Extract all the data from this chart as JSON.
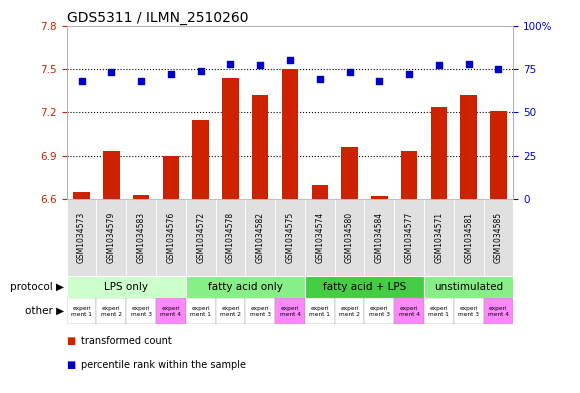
{
  "title": "GDS5311 / ILMN_2510260",
  "samples": [
    "GSM1034573",
    "GSM1034579",
    "GSM1034583",
    "GSM1034576",
    "GSM1034572",
    "GSM1034578",
    "GSM1034582",
    "GSM1034575",
    "GSM1034574",
    "GSM1034580",
    "GSM1034584",
    "GSM1034577",
    "GSM1034571",
    "GSM1034581",
    "GSM1034585"
  ],
  "bar_values": [
    6.65,
    6.93,
    6.63,
    6.9,
    7.15,
    7.44,
    7.32,
    7.5,
    6.7,
    6.96,
    6.62,
    6.93,
    7.24,
    7.32,
    7.21
  ],
  "dot_values": [
    68,
    73,
    68,
    72,
    74,
    78,
    77,
    80,
    69,
    73,
    68,
    72,
    77,
    78,
    75
  ],
  "ylim_left": [
    6.6,
    7.8
  ],
  "ylim_right": [
    0,
    100
  ],
  "yticks_left": [
    6.6,
    6.9,
    7.2,
    7.5,
    7.8
  ],
  "yticks_right": [
    0,
    25,
    50,
    75,
    100
  ],
  "hlines": [
    6.9,
    7.2,
    7.5
  ],
  "bar_color": "#cc2200",
  "dot_color": "#0000cc",
  "bg_color": "#ffffff",
  "grid_color": "#dddddd",
  "protocol_groups": [
    {
      "label": "LPS only",
      "start": 0,
      "end": 4,
      "color": "#ccffcc"
    },
    {
      "label": "fatty acid only",
      "start": 4,
      "end": 8,
      "color": "#88ee88"
    },
    {
      "label": "fatty acid + LPS",
      "start": 8,
      "end": 12,
      "color": "#44cc44"
    },
    {
      "label": "unstimulated",
      "start": 12,
      "end": 15,
      "color": "#88ee88"
    }
  ],
  "other_colors": [
    "#ffffff",
    "#ffffff",
    "#ffffff",
    "#ff88ff",
    "#ffffff",
    "#ffffff",
    "#ffffff",
    "#ff88ff",
    "#ffffff",
    "#ffffff",
    "#ffffff",
    "#ff88ff",
    "#ffffff",
    "#ffffff",
    "#ff88ff"
  ],
  "other_labels": [
    "experi\nment 1",
    "experi\nment 2",
    "experi\nment 3",
    "experi\nment 4",
    "experi\nment 1",
    "experi\nment 2",
    "experi\nment 3",
    "experi\nment 4",
    "experi\nment 1",
    "experi\nment 2",
    "experi\nment 3",
    "experi\nment 4",
    "experi\nment 1",
    "experi\nment 3",
    "experi\nment 4"
  ],
  "legend_bar_label": "transformed count",
  "legend_dot_label": "percentile rank within the sample",
  "protocol_label": "protocol",
  "other_label": "other",
  "title_fontsize": 10,
  "tick_fontsize": 7.5,
  "sample_fontsize": 5.5,
  "label_fontsize": 7.5
}
